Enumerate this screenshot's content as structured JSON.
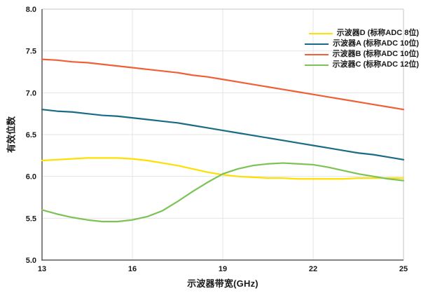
{
  "chart_data": {
    "type": "line",
    "title": "",
    "xlabel": "示波器带宽(GHz)",
    "ylabel": "有效位数",
    "xlim": [
      13,
      25
    ],
    "ylim": [
      5.0,
      8.0
    ],
    "x_ticks": [
      13,
      16,
      19,
      22,
      25
    ],
    "x_tick_labels": [
      "13",
      "16",
      "19",
      "22",
      "25"
    ],
    "y_ticks": [
      5.0,
      5.5,
      6.0,
      6.5,
      7.0,
      7.5,
      8.0
    ],
    "y_tick_labels": [
      "5.0",
      "5.5",
      "6.0",
      "6.5",
      "7.0",
      "7.5",
      "8.0"
    ],
    "grid": true,
    "legend_position": "top-right-inside",
    "x": [
      13,
      13.5,
      14,
      14.5,
      15,
      15.5,
      16,
      16.5,
      17,
      17.5,
      18,
      18.5,
      19,
      19.5,
      20,
      20.5,
      21,
      21.5,
      22,
      22.5,
      23,
      23.5,
      24,
      24.5,
      25
    ],
    "series": [
      {
        "name": "示波器D (标称ADC 8位)",
        "color": "#ffdf00",
        "values": [
          6.19,
          6.2,
          6.21,
          6.22,
          6.22,
          6.22,
          6.21,
          6.19,
          6.16,
          6.13,
          6.09,
          6.05,
          6.02,
          6.0,
          5.99,
          5.98,
          5.98,
          5.97,
          5.97,
          5.97,
          5.97,
          5.98,
          5.98,
          5.98,
          5.98
        ]
      },
      {
        "name": "示波器A (标称ADC 10位)",
        "color": "#1a6b86",
        "values": [
          6.8,
          6.78,
          6.77,
          6.75,
          6.73,
          6.72,
          6.7,
          6.68,
          6.66,
          6.64,
          6.61,
          6.58,
          6.55,
          6.52,
          6.49,
          6.46,
          6.43,
          6.4,
          6.37,
          6.34,
          6.31,
          6.28,
          6.26,
          6.23,
          6.2
        ]
      },
      {
        "name": "示波器B (标称ADC 10位)",
        "color": "#f05f35",
        "values": [
          7.4,
          7.39,
          7.37,
          7.36,
          7.34,
          7.32,
          7.3,
          7.28,
          7.26,
          7.24,
          7.21,
          7.19,
          7.16,
          7.13,
          7.1,
          7.07,
          7.04,
          7.01,
          6.98,
          6.95,
          6.92,
          6.89,
          6.86,
          6.83,
          6.8
        ]
      },
      {
        "name": "示波器C (标称ADC 12位)",
        "color": "#7cc356",
        "values": [
          5.6,
          5.55,
          5.51,
          5.48,
          5.46,
          5.46,
          5.48,
          5.52,
          5.59,
          5.7,
          5.82,
          5.93,
          6.03,
          6.09,
          6.13,
          6.15,
          6.16,
          6.15,
          6.14,
          6.11,
          6.07,
          6.03,
          6.0,
          5.97,
          5.95
        ]
      }
    ]
  }
}
